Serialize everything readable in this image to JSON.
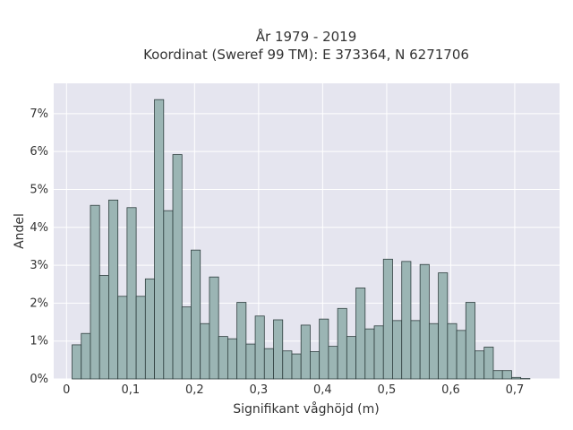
{
  "chart_data": {
    "type": "bar",
    "title_line1": "År 1979 - 2019",
    "title_line2": "Koordinat (Sweref 99 TM): E 373364, N 6271706",
    "xlabel": "Signifikant våghöjd (m)",
    "ylabel": "Andel",
    "xlim": [
      -0.02,
      0.77
    ],
    "ylim": [
      0,
      7.8
    ],
    "bin_width": 0.0143,
    "xticks": [
      0,
      0.1,
      0.2,
      0.3,
      0.4,
      0.5,
      0.6,
      0.7
    ],
    "xtick_labels": [
      "0",
      "0,1",
      "0,2",
      "0,3",
      "0,4",
      "0,5",
      "0,6",
      "0,7"
    ],
    "yticks": [
      0,
      1,
      2,
      3,
      4,
      5,
      6,
      7
    ],
    "ytick_labels": [
      "0%",
      "1%",
      "2%",
      "3%",
      "4%",
      "5%",
      "6%",
      "7%"
    ],
    "grid": true,
    "bar_color": "#9bb5b4",
    "bar_edge_color": "#2f3f3f",
    "plot_bg": "#e5e5ef",
    "bins_start": [
      0.0087,
      0.023,
      0.0373,
      0.0516,
      0.0659,
      0.0802,
      0.0945,
      0.1088,
      0.1231,
      0.1374,
      0.1517,
      0.166,
      0.1803,
      0.1946,
      0.2089,
      0.2232,
      0.2375,
      0.2518,
      0.2661,
      0.2804,
      0.2947,
      0.309,
      0.3233,
      0.3376,
      0.3519,
      0.3662,
      0.3805,
      0.3948,
      0.4091,
      0.4234,
      0.4377,
      0.452,
      0.4663,
      0.4806,
      0.4949,
      0.5092,
      0.5235,
      0.5378,
      0.5521,
      0.5664,
      0.5807,
      0.595,
      0.6093,
      0.6236,
      0.6379,
      0.6522,
      0.6665,
      0.6808,
      0.6951,
      0.7094
    ],
    "values": [
      0.9,
      1.2,
      4.58,
      2.73,
      4.72,
      2.18,
      4.52,
      2.18,
      2.64,
      7.37,
      4.44,
      5.92,
      1.9,
      3.4,
      1.46,
      2.69,
      1.12,
      1.06,
      2.02,
      0.92,
      1.66,
      0.8,
      1.56,
      0.74,
      0.66,
      1.42,
      0.72,
      1.58,
      0.86,
      1.86,
      1.12,
      2.4,
      1.32,
      1.4,
      3.16,
      1.54,
      3.1,
      1.54,
      3.02,
      1.46,
      2.8,
      1.46,
      1.28,
      2.02,
      0.74,
      0.84,
      0.22,
      0.22,
      0.04,
      0.01
    ]
  }
}
